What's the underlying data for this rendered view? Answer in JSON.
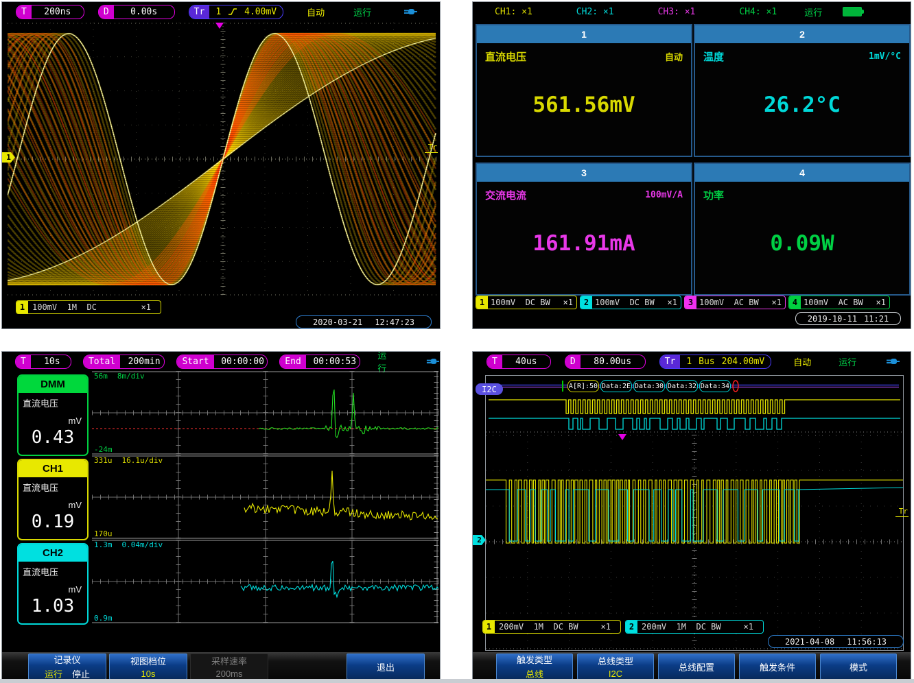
{
  "palette": {
    "yellow": "#e8e800",
    "cyan": "#00e0e0",
    "magenta": "#f030f0",
    "green": "#00d040",
    "panel_blue": "#2c7ab5",
    "pill_magenta": "#cf00cf",
    "trig_purple": "#5a28d8",
    "run_green": "#00d84a"
  },
  "q1": {
    "header": {
      "t": "T",
      "t_val": "200ns",
      "d": "D",
      "d_val": "0.00s",
      "tr": "Tr",
      "tr_src": "1",
      "tr_lvl": "4.00mV",
      "auto": "自动",
      "run": "运行"
    },
    "markers": {
      "ch": "1",
      "tr": "Tr"
    },
    "ch": {
      "n": "1",
      "info": "100mV  1M  DC",
      "probe": "×1"
    },
    "dt": {
      "date": "2020-03-21",
      "time": "12:47:23"
    }
  },
  "q2": {
    "header": {
      "ch1": "CH1: ×1",
      "ch2": "CH2: ×1",
      "ch3": "CH3: ×1",
      "ch4": "CH4: ×1",
      "run": "运行"
    },
    "panels": [
      {
        "num": "1",
        "label": "直流电压",
        "range": "自动",
        "value": "561.56mV"
      },
      {
        "num": "2",
        "label": "温度",
        "range": "1mV/°C",
        "value": "26.2°C"
      },
      {
        "num": "3",
        "label": "交流电流",
        "range": "100mV/A",
        "value": "161.91mA"
      },
      {
        "num": "4",
        "label": "功率",
        "range": "",
        "value": "0.09W"
      }
    ],
    "chbar": [
      {
        "n": "1",
        "info": "100mV  DC BW",
        "probe": "×1"
      },
      {
        "n": "2",
        "info": "100mV  DC BW",
        "probe": "×1"
      },
      {
        "n": "3",
        "info": "100mV  AC BW",
        "probe": "×1"
      },
      {
        "n": "4",
        "info": "100mV  AC BW",
        "probe": "×1"
      }
    ],
    "dt": {
      "date": "2019-10-11",
      "time": "11:21"
    }
  },
  "q3": {
    "header": {
      "t": "T",
      "t_val": "10s",
      "total": "Total",
      "total_val": "200min",
      "start": "Start",
      "start_val": "00:00:00",
      "end": "End",
      "end_val": "00:00:53",
      "run": "运行"
    },
    "cards": [
      {
        "name": "DMM",
        "label": "直流电压",
        "unit": "mV",
        "value": "0.43"
      },
      {
        "name": "CH1",
        "label": "直流电压",
        "unit": "mV",
        "value": "0.19"
      },
      {
        "name": "CH2",
        "label": "直流电压",
        "unit": "mV",
        "value": "1.03"
      }
    ],
    "graphs": [
      {
        "max": "56m",
        "scale": "8m/div",
        "min": "-24m"
      },
      {
        "max": "331u",
        "scale": "16.1u/div",
        "min": "170u"
      },
      {
        "max": "1.3m",
        "scale": "0.04m/div",
        "min": "0.9m"
      }
    ],
    "btns": {
      "b1t": "记录仪",
      "b1a": "运行",
      "b1b": "停止",
      "b2t": "视图档位",
      "b2v": "10s",
      "b3t": "采样速率",
      "b3v": "200ms",
      "b5": "退出"
    }
  },
  "q4": {
    "header": {
      "t": "T",
      "t_val": "40us",
      "d": "D",
      "d_val": "80.00us",
      "tr": "Tr",
      "tr_src": "1",
      "tr_bus": "Bus",
      "tr_lvl": "204.00mV",
      "auto": "自动",
      "run": "运行"
    },
    "bus": {
      "label": "I2C",
      "items": [
        "A[R]:50",
        "Data:2E",
        "Data:30",
        "Data:32",
        "Data:34"
      ]
    },
    "markers": {
      "ch": "2",
      "tr": "Tr"
    },
    "chbar": [
      {
        "n": "1",
        "info": "200mV  1M  DC BW",
        "probe": "×1"
      },
      {
        "n": "2",
        "info": "200mV  1M  DC BW",
        "probe": "×1"
      }
    ],
    "dt": {
      "date": "2021-04-08",
      "time": "11:56:13"
    },
    "btns": {
      "b1t": "触发类型",
      "b1v": "总线",
      "b2t": "总线类型",
      "b2v": "I2C",
      "b3": "总线配置",
      "b4": "触发条件",
      "b5": "模式"
    }
  }
}
